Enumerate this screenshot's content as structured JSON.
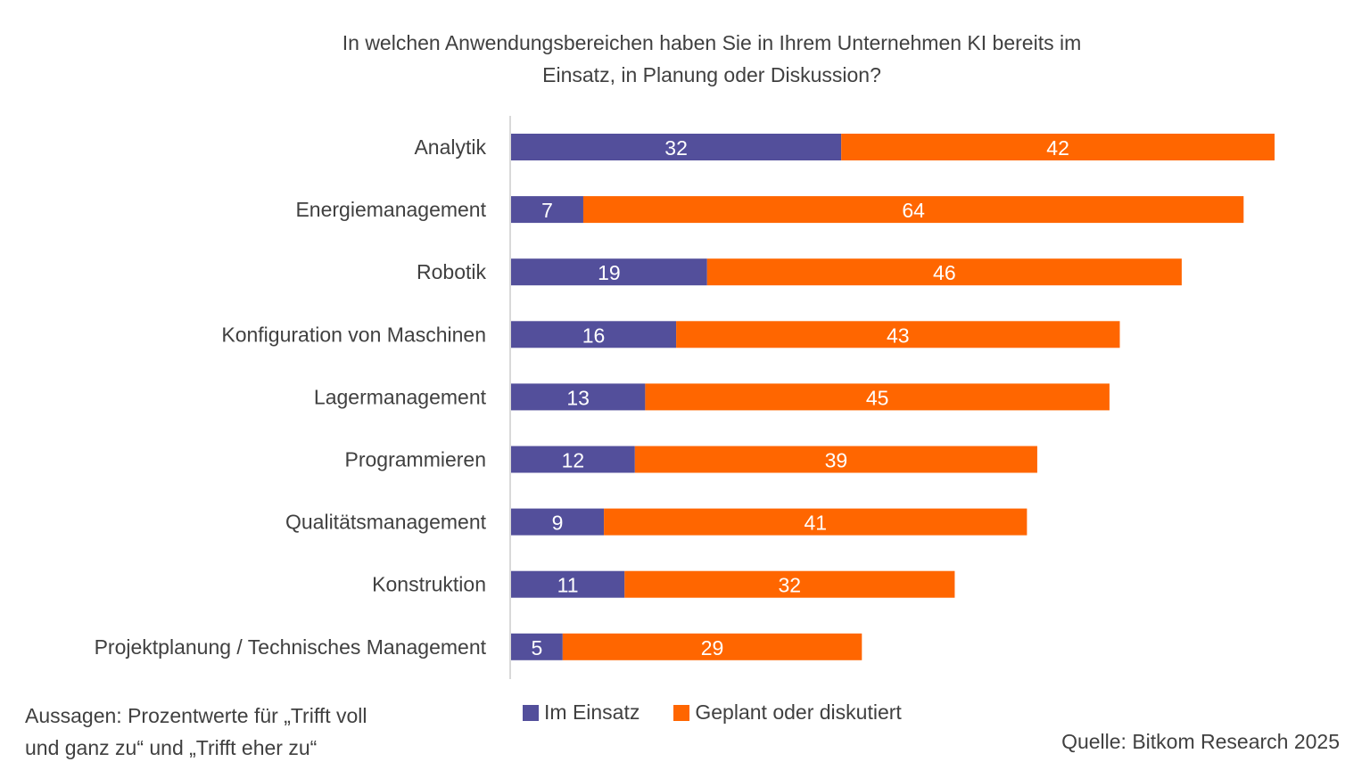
{
  "chart_data": {
    "type": "bar",
    "orientation": "horizontal",
    "stacked": true,
    "title": "In welchen Anwendungsbereichen haben Sie in Ihrem Unternehmen KI bereits im Einsatz, in Planung oder Diskussion?",
    "title_lines": [
      "In welchen Anwendungsbereichen haben Sie in Ihrem Unternehmen KI bereits im",
      "Einsatz, in Planung oder Diskussion?"
    ],
    "categories": [
      "Analytik",
      "Energiemanagement",
      "Robotik",
      "Konfiguration von Maschinen",
      "Lagermanagement",
      "Programmieren",
      "Qualitätsmanagement",
      "Konstruktion",
      "Projektplanung / Technisches Management"
    ],
    "series": [
      {
        "name": "Im Einsatz",
        "color": "#534f9b",
        "values": [
          32,
          7,
          19,
          16,
          13,
          12,
          9,
          11,
          5
        ]
      },
      {
        "name": "Geplant oder diskutiert",
        "color": "#ff6600",
        "values": [
          42,
          64,
          46,
          43,
          45,
          39,
          41,
          32,
          29
        ]
      }
    ],
    "xlim": [
      0,
      74
    ],
    "grid": false,
    "data_labels": true,
    "legend_position": "bottom"
  },
  "note_lines": [
    "Aussagen: Prozentwerte für „Trifft voll",
    "und ganz zu“ und „Trifft eher zu“"
  ],
  "source": "Quelle: Bitkom Research 2025"
}
